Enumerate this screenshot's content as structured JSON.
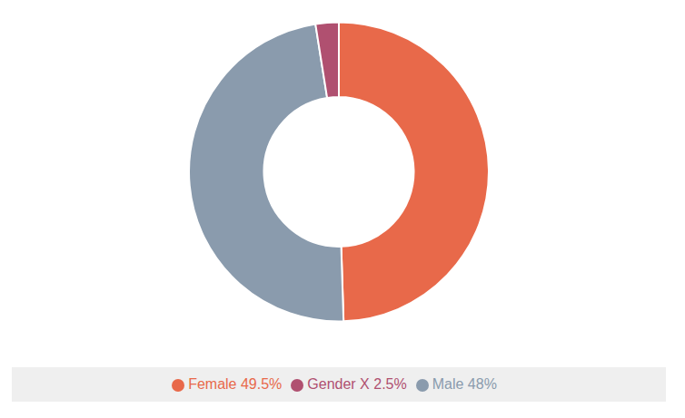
{
  "chart_data": {
    "type": "pie",
    "categories": [
      "Female 49.5%",
      "Male 48%",
      "Gender X 2.5%"
    ],
    "values": [
      49.5,
      48.0,
      2.5
    ],
    "colors": [
      "#E8694A",
      "#8A9BAD",
      "#B05070"
    ],
    "legend": "bottom"
  }
}
